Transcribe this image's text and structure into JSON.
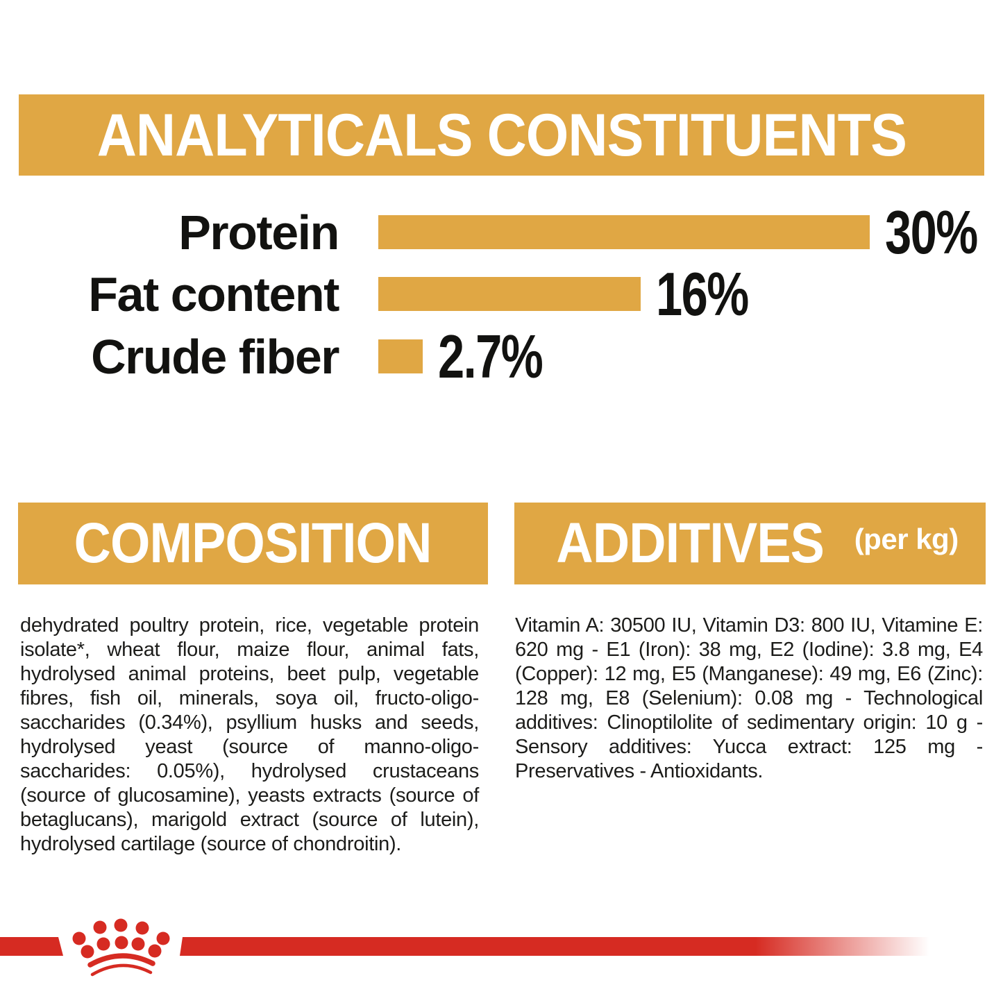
{
  "colors": {
    "gold": "#E0A744",
    "red": "#D62B22",
    "text": "#1C1C1A",
    "header_text": "#FFFFFF"
  },
  "analyticals": {
    "title": "ANALYTICALS CONSTITUENTS"
  },
  "chart_data": {
    "type": "bar",
    "orientation": "horizontal",
    "title": "ANALYTICALS CONSTITUENTS",
    "categories": [
      "Protein",
      "Fat content",
      "Crude fiber"
    ],
    "values": [
      30,
      16,
      2.7
    ],
    "value_labels": [
      "30%",
      "16%",
      "2.7%"
    ],
    "unit": "%",
    "xlim": [
      0,
      30
    ],
    "bar_color": "#E0A744",
    "grid": "off",
    "legend": "none"
  },
  "composition": {
    "title": "COMPOSITION",
    "body": "dehydrated poultry protein, rice, vegetable protein isolate*, wheat flour, maize flour, animal fats, hydrolysed animal proteins, beet pulp, vegetable fibres, fish oil, minerals, soya oil, fructo-oligo-saccharides (0.34%), psyllium husks and seeds, hydrolysed yeast (source of manno-oligo-saccharides: 0.05%), hydrolysed crustaceans (source of glucosamine), yeasts extracts (source of betaglucans), marigold extract (source of lutein), hydrolysed cartilage (source of chondroitin)."
  },
  "additives": {
    "title": "ADDITIVES",
    "title_suffix": "(per kg)",
    "body": "Vitamin A: 30500 IU, Vitamin D3: 800 IU, Vitamine E: 620 mg - E1 (Iron): 38 mg, E2 (Iodine): 3.8 mg, E4 (Copper): 12 mg, E5 (Manganese): 49 mg, E6 (Zinc): 128 mg, E8 (Selenium): 0.08 mg - Technological additives: Clinoptilolite of sedimentary origin: 10 g - Sensory additives: Yucca extract: 125 mg - Preservatives - Antioxidants."
  },
  "footer": {
    "brand_mark": "royal-canin-crown"
  }
}
